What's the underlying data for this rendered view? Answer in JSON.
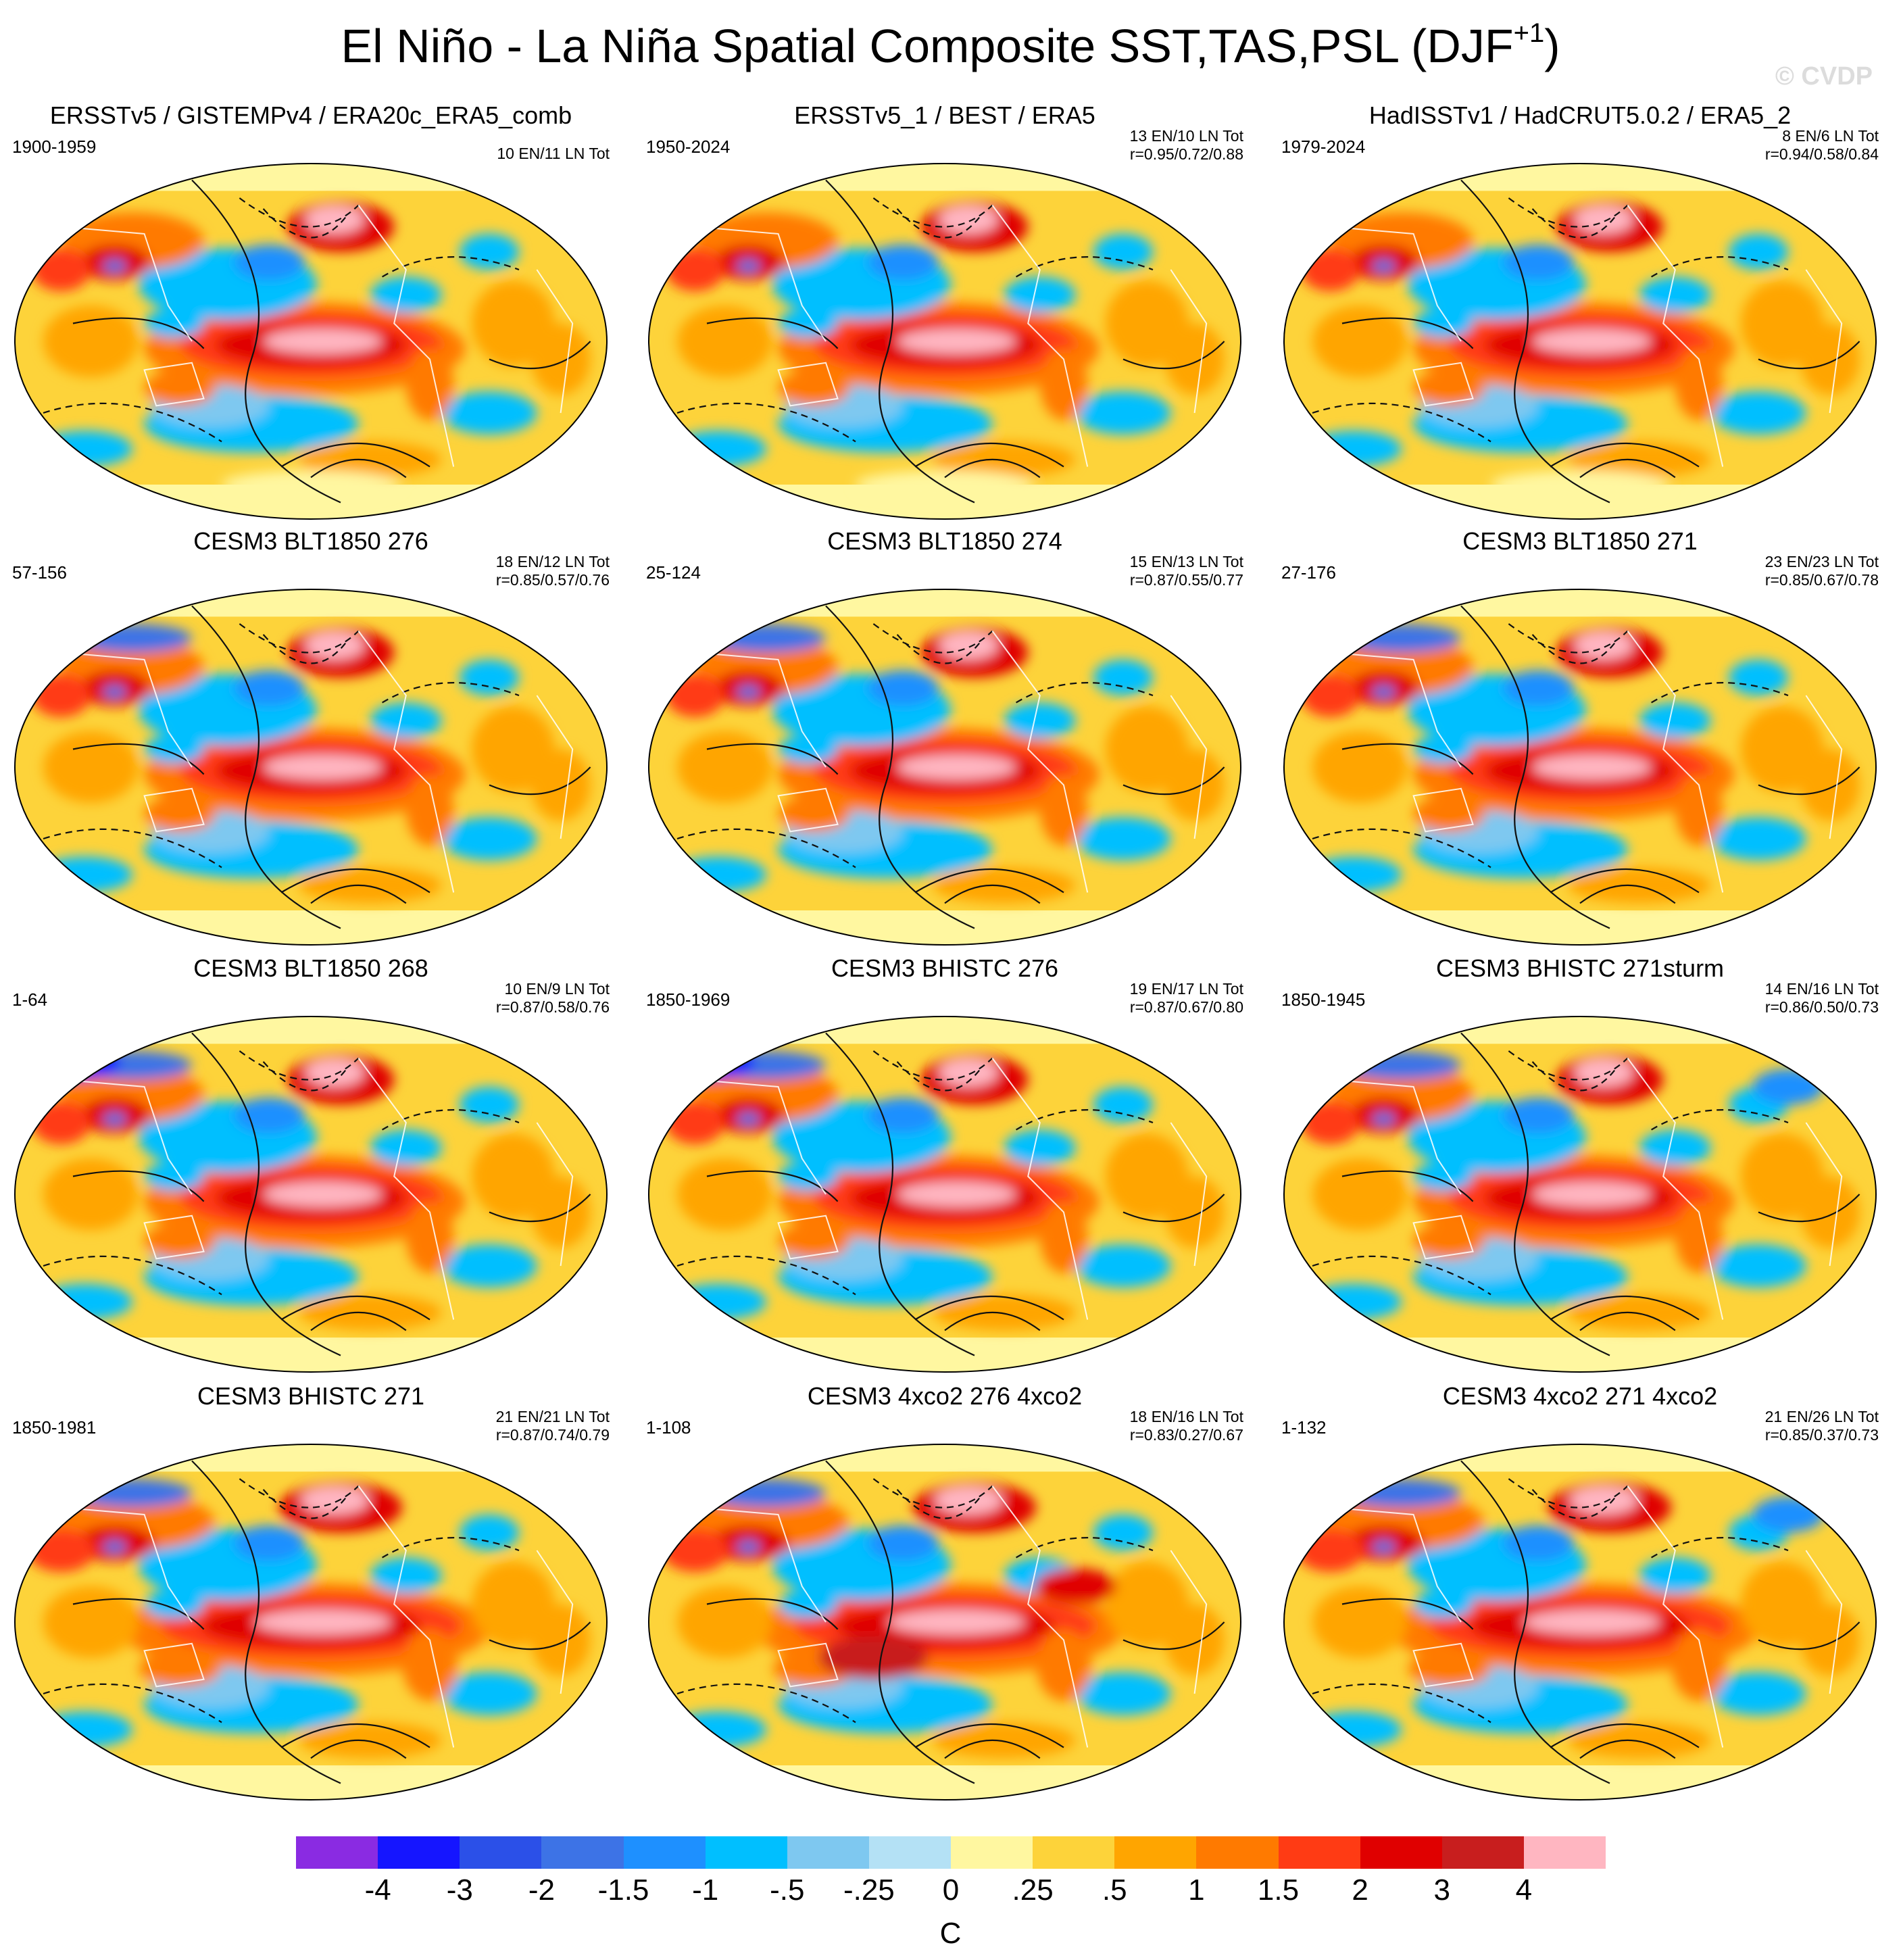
{
  "title": {
    "main": "El Niño - La Niña Spatial Composite SST,TAS,PSL (DJF",
    "superscript": "+1",
    "close": ")"
  },
  "watermark": "© CVDP",
  "panels": [
    {
      "title": "ERSSTv5 / GISTEMPv4 / ERA20c_ERA5_comb",
      "years": "1900-1959",
      "count": "10 EN/11 LN Tot",
      "corr": "",
      "variant": 0
    },
    {
      "title": "ERSSTv5_1 / BEST / ERA5",
      "years": "1950-2024",
      "count": "13 EN/10 LN Tot",
      "corr": "r=0.95/0.72/0.88",
      "variant": 1
    },
    {
      "title": "HadISSTv1 / HadCRUT5.0.2 / ERA5_2",
      "years": "1979-2024",
      "count": "8 EN/6 LN Tot",
      "corr": "r=0.94/0.58/0.84",
      "variant": 2
    },
    {
      "title": "CESM3 BLT1850 276",
      "years": "57-156",
      "count": "18 EN/12 LN Tot",
      "corr": "r=0.85/0.57/0.76",
      "variant": 3
    },
    {
      "title": "CESM3 BLT1850 274",
      "years": "25-124",
      "count": "15 EN/13 LN Tot",
      "corr": "r=0.87/0.55/0.77",
      "variant": 4
    },
    {
      "title": "CESM3 BLT1850 271",
      "years": "27-176",
      "count": "23 EN/23 LN Tot",
      "corr": "r=0.85/0.67/0.78",
      "variant": 5
    },
    {
      "title": "CESM3 BLT1850 268",
      "years": "1-64",
      "count": "10 EN/9 LN Tot",
      "corr": "r=0.87/0.58/0.76",
      "variant": 6
    },
    {
      "title": "CESM3 BHISTC 276",
      "years": "1850-1969",
      "count": "19 EN/17 LN Tot",
      "corr": "r=0.87/0.67/0.80",
      "variant": 7
    },
    {
      "title": "CESM3 BHISTC 271sturm",
      "years": "1850-1945",
      "count": "14 EN/16 LN Tot",
      "corr": "r=0.86/0.50/0.73",
      "variant": 8
    },
    {
      "title": "CESM3 BHISTC 271",
      "years": "1850-1981",
      "count": "21 EN/21 LN Tot",
      "corr": "r=0.87/0.74/0.79",
      "variant": 9
    },
    {
      "title": "CESM3 4xco2 276 4xco2",
      "years": "1-108",
      "count": "18 EN/16 LN Tot",
      "corr": "r=0.83/0.27/0.67",
      "variant": 10
    },
    {
      "title": "CESM3 4xco2 271 4xco2",
      "years": "1-132",
      "count": "21 EN/26 LN Tot",
      "corr": "r=0.85/0.37/0.73",
      "variant": 11
    }
  ],
  "colorbar": {
    "colors": [
      "#8a2be2",
      "#1515ff",
      "#2b50e8",
      "#3d73e6",
      "#1e90ff",
      "#00bfff",
      "#7ec8f0",
      "#b4e1f5",
      "#fff7a0",
      "#fdd33a",
      "#ffa500",
      "#ff7a00",
      "#ff3b14",
      "#e00000",
      "#c81e1e",
      "#ffb6c1"
    ],
    "labels": [
      "-4",
      "-3",
      "-2",
      "-1.5",
      "-1",
      "-.5",
      "-.25",
      "0",
      ".25",
      ".5",
      "1",
      "1.5",
      "2",
      "3",
      "4"
    ],
    "units": "C"
  }
}
